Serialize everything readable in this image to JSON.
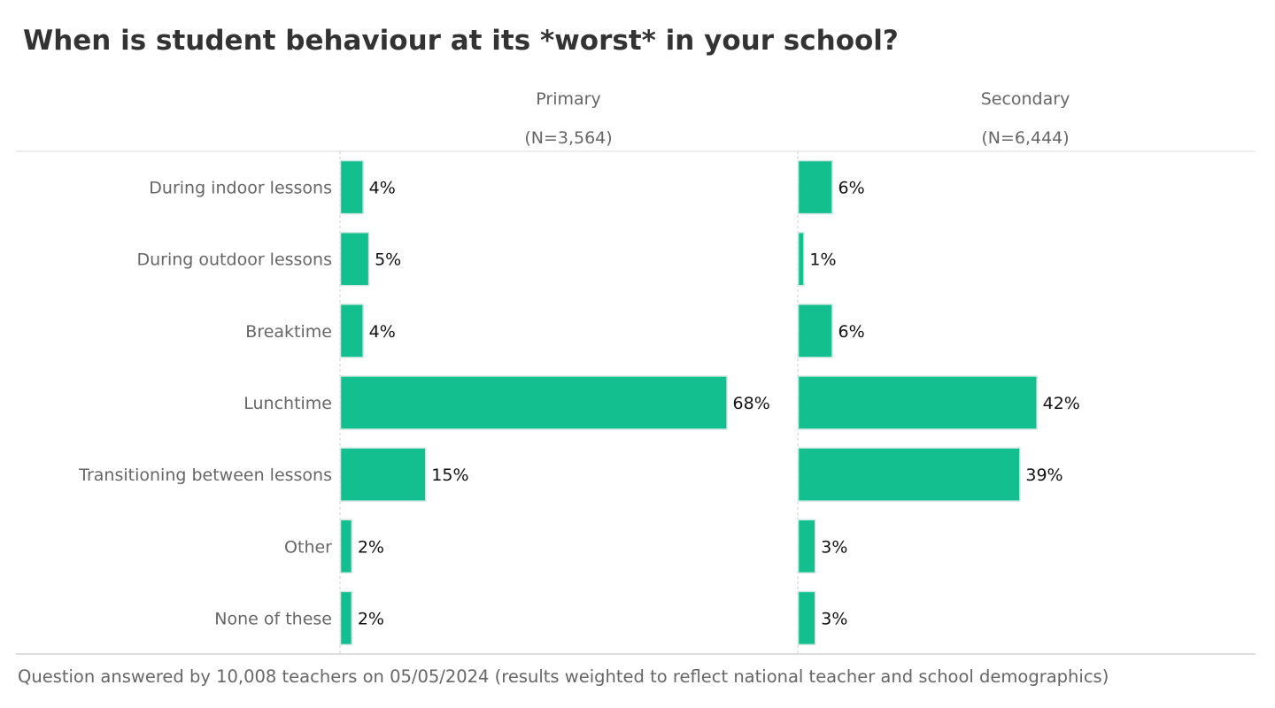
{
  "title": "When is student behaviour at its *worst* in your school?",
  "footnote": "Question answered by 10,008 teachers on 05/05/2024 (results weighted to reflect national teacher and school demographics)",
  "colors": {
    "bar": "#13bf8f",
    "bar_border": "#cfe9e0",
    "label": "#666666",
    "value": "#111111"
  },
  "chart_data": {
    "type": "bar",
    "orientation": "horizontal",
    "title": "When is student behaviour at its *worst* in your school?",
    "categories": [
      "During indoor lessons",
      "During outdoor lessons",
      "Breaktime",
      "Lunchtime",
      "Transitioning between lessons",
      "Other",
      "None of these"
    ],
    "series": [
      {
        "name": "Primary",
        "n_label": "(N=3,564)",
        "values": [
          4,
          5,
          4,
          68,
          15,
          2,
          2
        ]
      },
      {
        "name": "Secondary",
        "n_label": "(N=6,444)",
        "values": [
          6,
          1,
          6,
          42,
          39,
          3,
          3
        ]
      }
    ],
    "value_suffix": "%",
    "xlim": [
      0,
      80
    ]
  }
}
